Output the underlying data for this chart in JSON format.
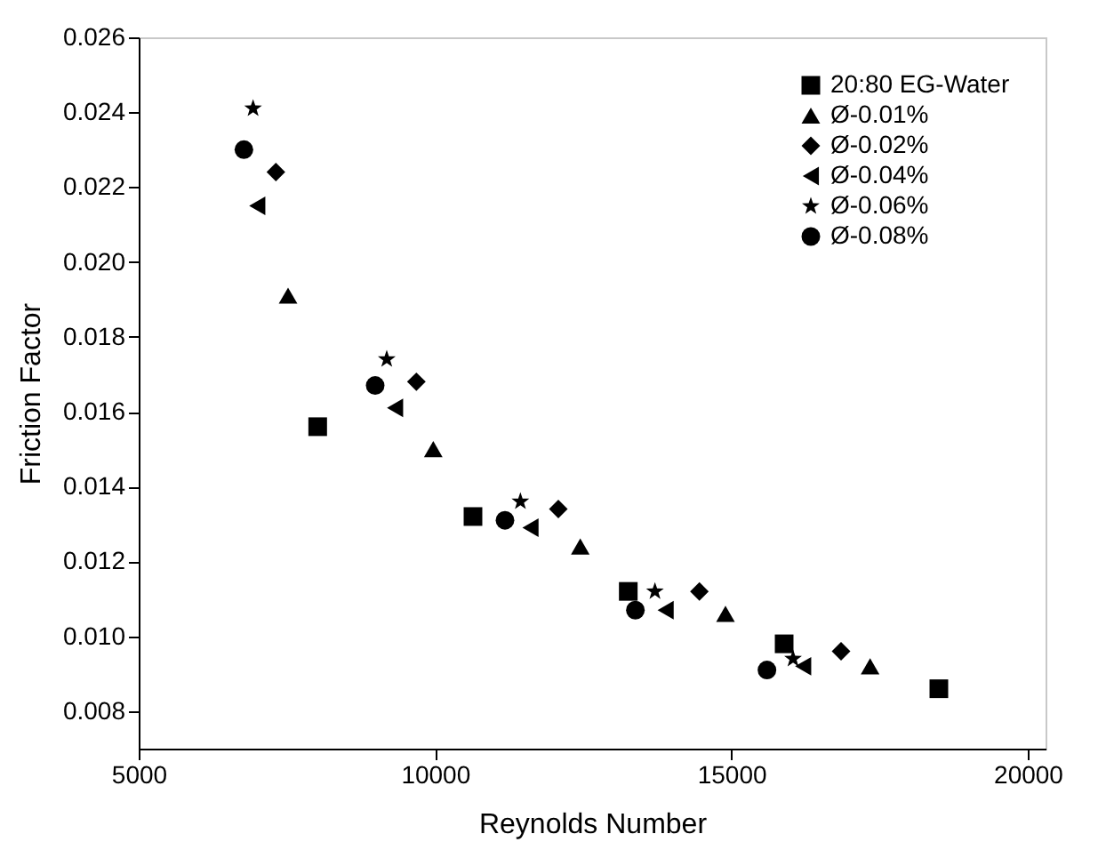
{
  "chart_data": {
    "type": "scatter",
    "xlabel": "Reynolds Number",
    "ylabel": "Friction Factor",
    "xlim": [
      5000,
      20300
    ],
    "ylim": [
      0.007,
      0.026
    ],
    "xticks": [
      5000,
      10000,
      15000,
      20000
    ],
    "yticks": [
      0.008,
      {
        "value": 0.01,
        "label": "0.010"
      },
      0.012,
      0.014,
      0.016,
      0.018,
      {
        "value": 0.02,
        "label": "0.020"
      },
      0.022,
      0.024,
      0.026
    ],
    "grid": false,
    "legend": "top right",
    "series": [
      {
        "name": "20:80 EG-Water",
        "color": "#000000",
        "marker": "square",
        "x": [
          8020,
          10640,
          13260,
          15890,
          18500
        ],
        "values": [
          0.0156,
          0.0132,
          0.0112,
          0.0098,
          0.0086
        ]
      },
      {
        "name": "Ø-0.01%",
        "color": "#000000",
        "marker": "triangle",
        "x": [
          7520,
          9970,
          12450,
          14900,
          17340
        ],
        "values": [
          0.0191,
          0.015,
          0.0124,
          0.0106,
          0.0092
        ]
      },
      {
        "name": "Ø-0.02%",
        "color": "#000000",
        "marker": "diamond",
        "x": [
          7315,
          9685,
          12080,
          14460,
          16850
        ],
        "values": [
          0.0224,
          0.0168,
          0.0134,
          0.0112,
          0.0096
        ]
      },
      {
        "name": "Ø-0.04%",
        "color": "#000000",
        "marker": "triangle-left",
        "x": [
          7000,
          9325,
          11610,
          13890,
          16210
        ],
        "values": [
          0.0215,
          0.0161,
          0.0129,
          0.0107,
          0.0092
        ]
      },
      {
        "name": "Ø-0.06%",
        "color": "#000000",
        "marker": "star",
        "x": [
          6930,
          9185,
          11440,
          13710,
          16040
        ],
        "values": [
          0.0241,
          0.0174,
          0.0136,
          0.0112,
          0.0094
        ]
      },
      {
        "name": "Ø-0.08%",
        "color": "#000000",
        "marker": "circle",
        "x": [
          6775,
          8990,
          11180,
          13380,
          15600
        ],
        "values": [
          0.023,
          0.0167,
          0.0131,
          0.0107,
          0.0091
        ]
      }
    ]
  }
}
